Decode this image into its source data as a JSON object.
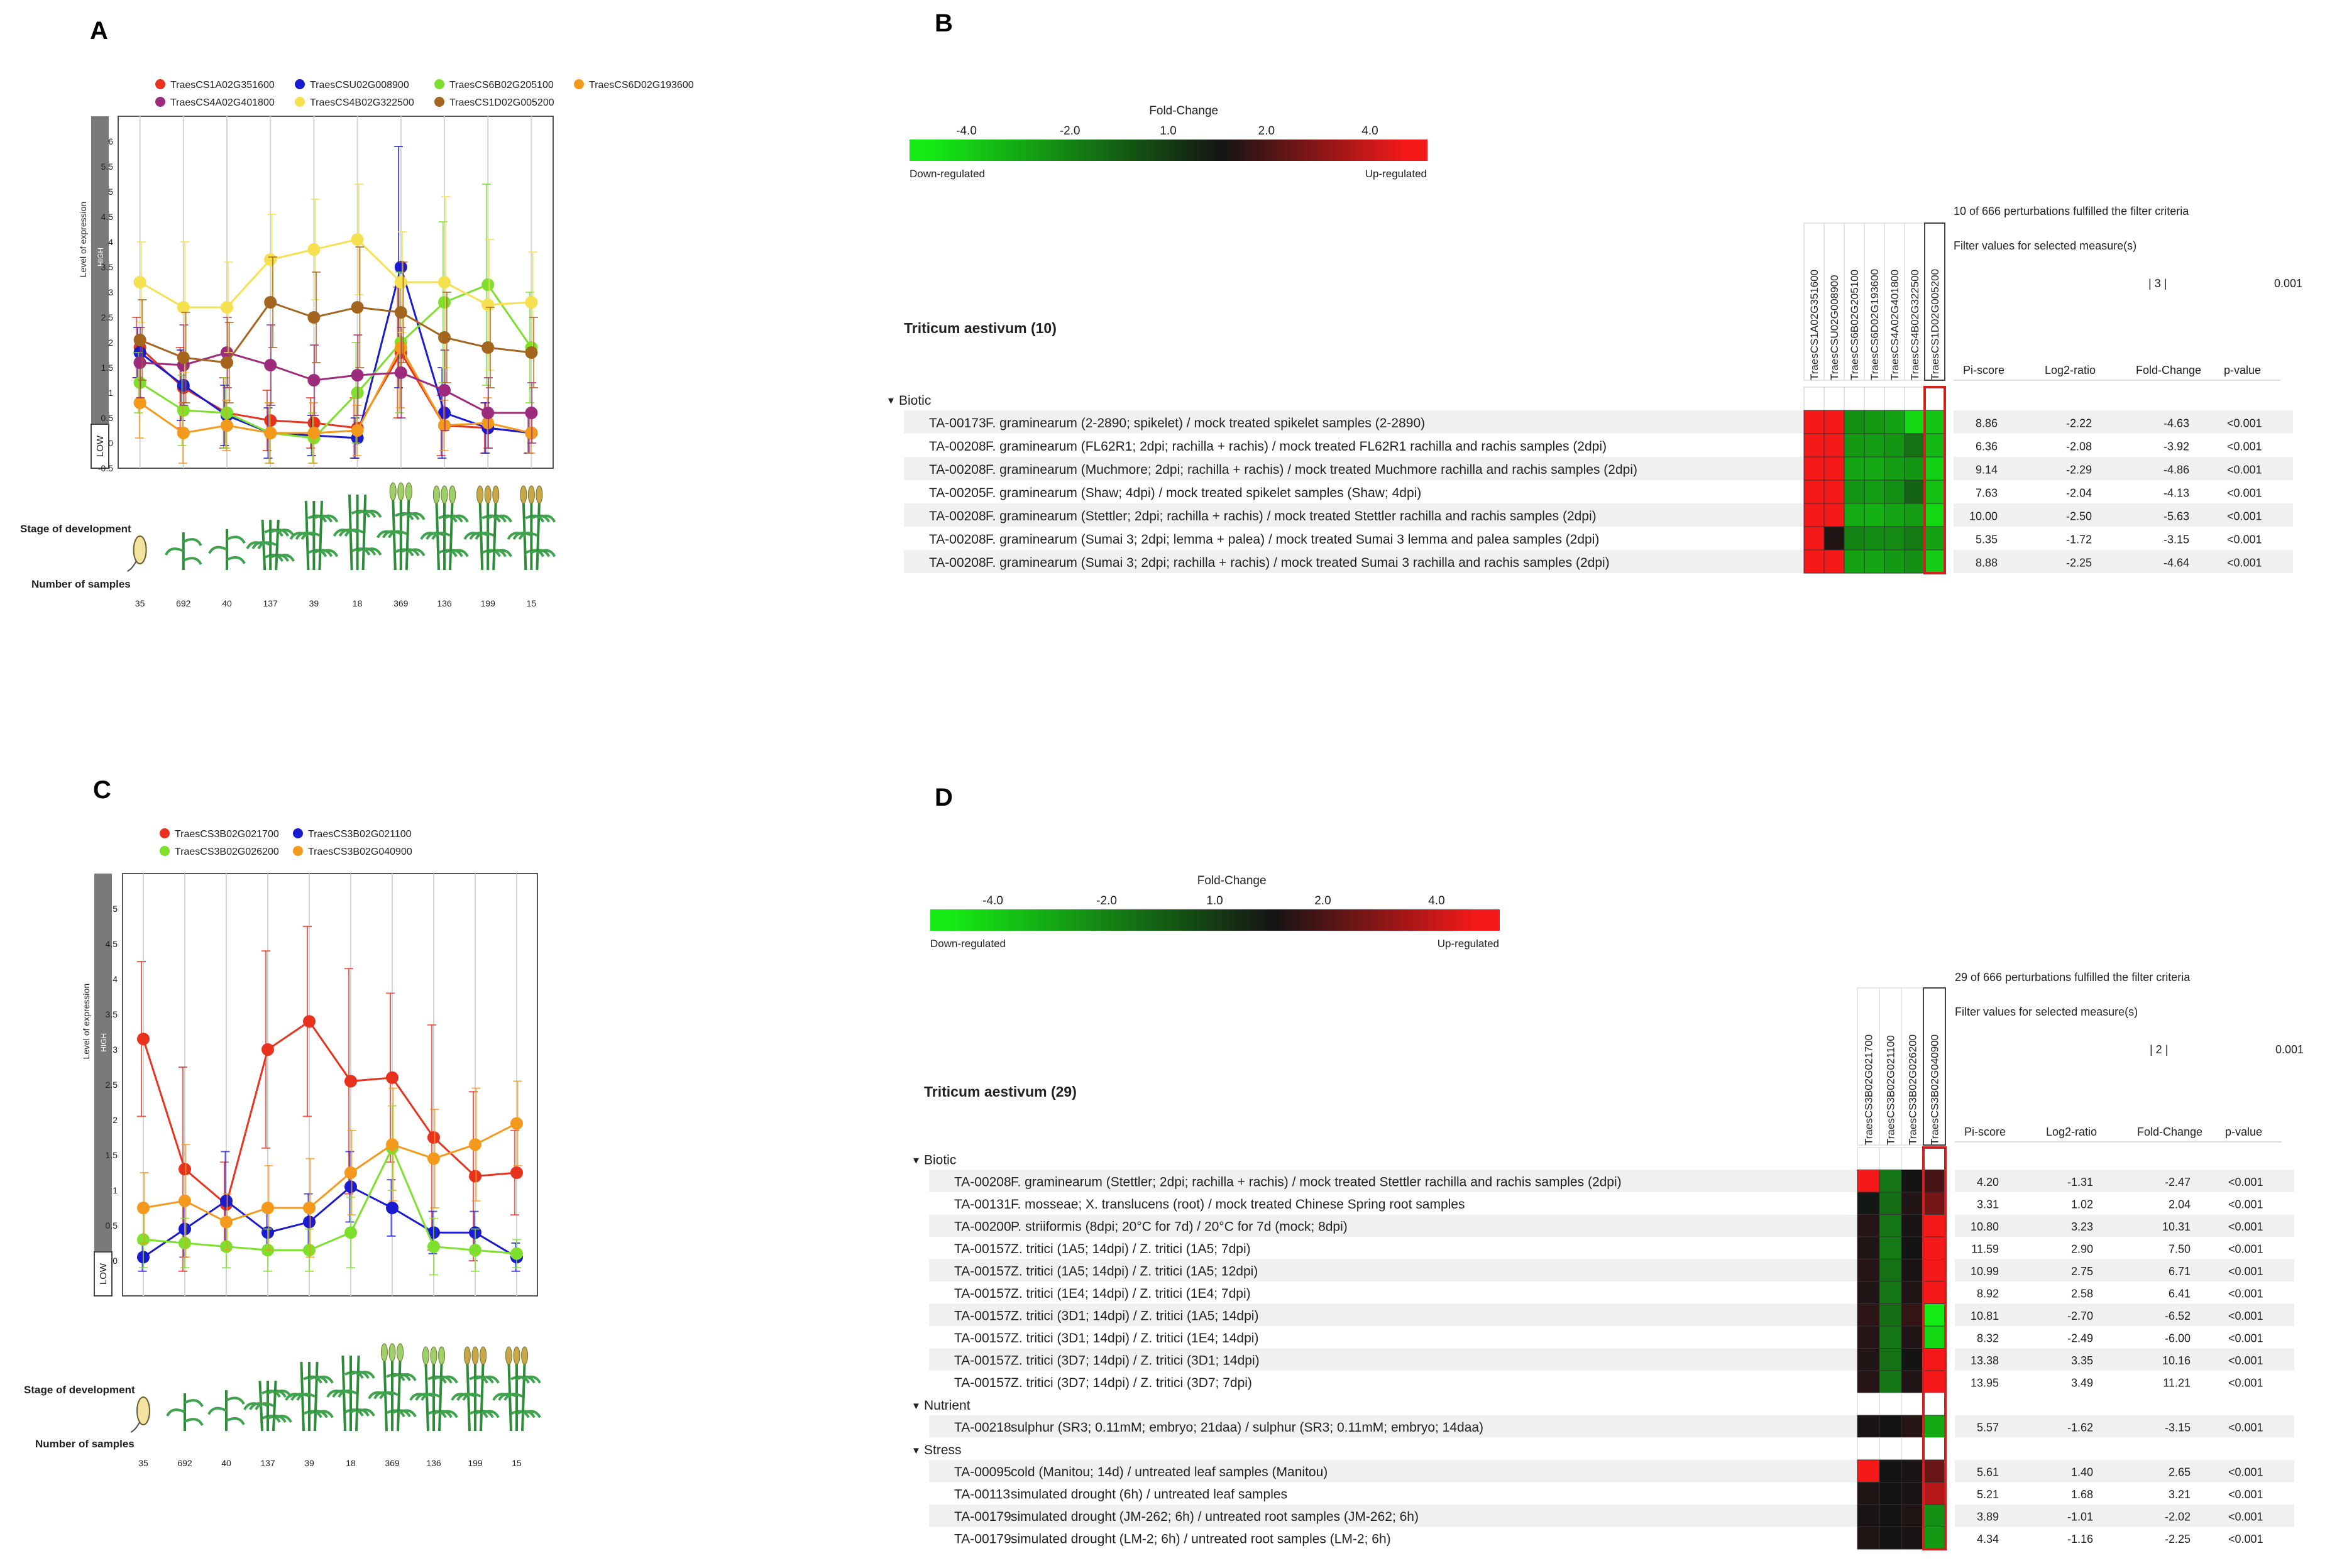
{
  "chart_data": [
    {
      "id": "A",
      "panel_label": "A",
      "type": "line",
      "categories": [
        "35",
        "692",
        "40",
        "137",
        "39",
        "18",
        "369",
        "136",
        "199",
        "15"
      ],
      "xlabel": "Number of samples",
      "row_label": "Stage of development",
      "ylabel": "Level of expression",
      "high_label": "HIGH",
      "low_label": "LOW",
      "ylim": [
        -0.5,
        6.5
      ],
      "yticks": [
        "-0.5",
        "0",
        "0.5",
        "1",
        "1.5",
        "2",
        "2.5",
        "3",
        "3.5",
        "4",
        "4.5",
        "5",
        "5.5",
        "6"
      ],
      "legend_position": "top",
      "series": [
        {
          "name": "TraesCS1A02G351600",
          "color": "#e8321e",
          "values": [
            1.9,
            1.1,
            0.6,
            0.45,
            0.4,
            0.3,
            1.8,
            0.35,
            0.3,
            0.2
          ]
        },
        {
          "name": "TraesCSU02G008900",
          "color": "#1a1ad0",
          "values": [
            1.8,
            1.15,
            0.55,
            0.2,
            0.15,
            0.1,
            3.5,
            0.6,
            0.3,
            0.2
          ]
        },
        {
          "name": "TraesCS6B02G205100",
          "color": "#7ee02c",
          "values": [
            1.2,
            0.65,
            0.6,
            0.2,
            0.1,
            1.0,
            2.0,
            2.8,
            3.15,
            1.9
          ]
        },
        {
          "name": "TraesCS6D02G193600",
          "color": "#f39a1d",
          "values": [
            0.8,
            0.2,
            0.35,
            0.2,
            0.2,
            0.25,
            1.9,
            0.35,
            0.4,
            0.2
          ]
        },
        {
          "name": "TraesCS4A02G401800",
          "color": "#9c2c7b",
          "values": [
            1.6,
            1.55,
            1.8,
            1.55,
            1.25,
            1.35,
            1.4,
            1.05,
            0.6,
            0.6
          ]
        },
        {
          "name": "TraesCS4B02G322500",
          "color": "#f5e050",
          "values": [
            3.2,
            2.7,
            2.7,
            3.65,
            3.85,
            4.05,
            3.2,
            3.2,
            2.75,
            2.8
          ]
        },
        {
          "name": "TraesCS1D02G005200",
          "color": "#a4651f",
          "values": [
            2.05,
            1.7,
            1.6,
            2.8,
            2.5,
            2.7,
            2.6,
            2.1,
            1.9,
            1.8
          ]
        }
      ],
      "errors": [
        [
          0.6,
          0.8,
          0.7,
          0.6,
          0.5,
          0.6,
          1.3,
          0.6,
          0.5,
          0.4
        ],
        [
          0.5,
          0.7,
          0.6,
          0.5,
          0.4,
          0.4,
          2.4,
          0.9,
          0.5,
          0.4
        ],
        [
          0.6,
          0.7,
          0.7,
          0.6,
          0.5,
          1.0,
          1.4,
          1.6,
          2.0,
          1.1
        ],
        [
          0.7,
          0.6,
          0.5,
          0.6,
          0.6,
          0.5,
          1.2,
          0.5,
          0.5,
          0.4
        ],
        [
          0.7,
          0.8,
          0.7,
          0.8,
          0.7,
          0.8,
          0.9,
          0.8,
          0.7,
          0.6
        ],
        [
          0.8,
          1.3,
          0.9,
          0.9,
          1.0,
          1.1,
          1.0,
          1.7,
          1.3,
          1.0
        ],
        [
          0.8,
          0.9,
          0.8,
          0.9,
          0.9,
          1.2,
          1.0,
          0.9,
          0.8,
          0.7
        ]
      ]
    },
    {
      "id": "C",
      "panel_label": "C",
      "type": "line",
      "categories": [
        "35",
        "692",
        "40",
        "137",
        "39",
        "18",
        "369",
        "136",
        "199",
        "15"
      ],
      "xlabel": "Number of samples",
      "row_label": "Stage of development",
      "ylabel": "Level of expression",
      "high_label": "HIGH",
      "low_label": "LOW",
      "ylim": [
        -0.5,
        5.5
      ],
      "yticks": [
        "0",
        "0.5",
        "1",
        "1.5",
        "2",
        "2.5",
        "3",
        "3.5",
        "4",
        "4.5",
        "5"
      ],
      "legend_position": "top",
      "series": [
        {
          "name": "TraesCS3B02G021700",
          "color": "#e8321e",
          "values": [
            3.15,
            1.3,
            0.8,
            3.0,
            3.4,
            2.55,
            2.6,
            1.75,
            1.2,
            1.25
          ]
        },
        {
          "name": "TraesCS3B02G021100",
          "color": "#1a1ad0",
          "values": [
            0.05,
            0.45,
            0.85,
            0.4,
            0.55,
            1.05,
            0.75,
            0.4,
            0.4,
            0.05
          ]
        },
        {
          "name": "TraesCS3B02G026200",
          "color": "#7ee02c",
          "values": [
            0.3,
            0.25,
            0.2,
            0.15,
            0.15,
            0.4,
            1.6,
            0.2,
            0.15,
            0.1
          ]
        },
        {
          "name": "TraesCS3B02G040900",
          "color": "#f39a1d",
          "values": [
            0.75,
            0.85,
            0.55,
            0.75,
            0.75,
            1.25,
            1.65,
            1.45,
            1.65,
            1.95
          ]
        }
      ],
      "errors": [
        [
          1.1,
          1.45,
          0.6,
          1.4,
          1.35,
          1.6,
          1.2,
          1.6,
          1.2,
          0.6
        ],
        [
          0.2,
          0.4,
          0.7,
          0.3,
          0.4,
          0.5,
          0.4,
          0.3,
          0.3,
          0.2
        ],
        [
          0.4,
          0.35,
          0.3,
          0.3,
          0.3,
          0.5,
          0.6,
          0.4,
          0.3,
          0.2
        ],
        [
          0.5,
          0.8,
          0.4,
          0.6,
          0.7,
          0.6,
          0.8,
          0.7,
          0.8,
          0.6
        ]
      ]
    },
    {
      "id": "B",
      "panel_label": "B",
      "type": "heatmap",
      "color_scale": {
        "title": "Fold-Change",
        "ticks": [
          "-4.0",
          "-2.0",
          "1.0",
          "2.0",
          "4.0"
        ],
        "left_label": "Down-regulated",
        "right_label": "Up-regulated"
      },
      "filter_note": "10 of 666 perturbations fulfilled the filter criteria",
      "filter_label": "Filter values for selected measure(s)",
      "filter_values": [
        "| 3 |",
        "0.001"
      ],
      "organism": "Triticum aestivum (10)",
      "columns": [
        "TraesCS1A02G351600",
        "TraesCSU02G008900",
        "TraesCS6B02G205100",
        "TraesCS6D02G193600",
        "TraesCS4A02G401800",
        "TraesCS4B02G322500",
        "TraesCS1D02G005200"
      ],
      "stat_headers": [
        "Pi-score",
        "Log2-ratio",
        "Fold-Change",
        "p-value"
      ],
      "groups": [
        {
          "name": "Biotic",
          "rows": [
            {
              "id": "TA-00173",
              "label": "F. graminearum (2-2890; spikelet) / mock treated spikelet samples (2-2890)",
              "pi": "8.86",
              "log2": "-2.22",
              "fc": "-4.63",
              "p": "<0.001",
              "cells": [
                4.5,
                4.5,
                -2.2,
                -2.4,
                -2.6,
                -4.0,
                -3.5
              ]
            },
            {
              "id": "TA-00208",
              "label": "F. graminearum (FL62R1; 2dpi; rachilla + rachis) / mock treated FL62R1 rachilla and rachis samples (2dpi)",
              "pi": "6.36",
              "log2": "-2.08",
              "fc": "-3.92",
              "p": "<0.001",
              "cells": [
                4.5,
                4.5,
                -2.4,
                -2.5,
                -2.3,
                -1.4,
                -3.2
              ]
            },
            {
              "id": "TA-00208",
              "label": "F. graminearum (Muchmore; 2dpi; rachilla + rachis) / mock treated Muchmore rachilla and rachis samples (2dpi)",
              "pi": "9.14",
              "log2": "-2.29",
              "fc": "-4.86",
              "p": "<0.001",
              "cells": [
                4.5,
                4.5,
                -2.7,
                -2.8,
                -2.5,
                -2.3,
                -3.8
              ]
            },
            {
              "id": "TA-00205",
              "label": "F. graminearum (Shaw; 4dpi) / mock treated spikelet samples (Shaw; 4dpi)",
              "pi": "7.63",
              "log2": "-2.04",
              "fc": "-4.13",
              "p": "<0.001",
              "cells": [
                4.5,
                4.5,
                -2.3,
                -2.5,
                -2.2,
                -1.0,
                -3.4
              ]
            },
            {
              "id": "TA-00208",
              "label": "F. graminearum (Stettler; 2dpi; rachilla + rachis) / mock treated Stettler rachilla and rachis samples (2dpi)",
              "pi": "10.00",
              "log2": "-2.50",
              "fc": "-5.63",
              "p": "<0.001",
              "cells": [
                4.5,
                4.5,
                -2.9,
                -3.0,
                -2.7,
                -2.5,
                -4.0
              ]
            },
            {
              "id": "TA-00208",
              "label": "F. graminearum (Sumai 3; 2dpi; lemma + palea) / mock treated Sumai 3 lemma and palea samples (2dpi)",
              "pi": "5.35",
              "log2": "-1.72",
              "fc": "-3.15",
              "p": "<0.001",
              "cells": [
                4.5,
                1.2,
                -1.9,
                -2.1,
                -2.0,
                -1.6,
                -2.6
              ]
            },
            {
              "id": "TA-00208",
              "label": "F. graminearum (Sumai 3; 2dpi; rachilla + rachis) / mock treated Sumai 3 rachilla and rachis samples (2dpi)",
              "pi": "8.88",
              "log2": "-2.25",
              "fc": "-4.64",
              "p": "<0.001",
              "cells": [
                4.5,
                4.5,
                -2.6,
                -2.7,
                -2.4,
                -2.2,
                -3.7
              ]
            }
          ]
        }
      ]
    },
    {
      "id": "D",
      "panel_label": "D",
      "type": "heatmap",
      "color_scale": {
        "title": "Fold-Change",
        "ticks": [
          "-4.0",
          "-2.0",
          "1.0",
          "2.0",
          "4.0"
        ],
        "left_label": "Down-regulated",
        "right_label": "Up-regulated"
      },
      "filter_note": "29 of 666 perturbations fulfilled the filter criteria",
      "filter_label": "Filter values for selected measure(s)",
      "filter_values": [
        "| 2 |",
        "0.001"
      ],
      "organism": "Triticum aestivum (29)",
      "columns": [
        "TraesCS3B02G021700",
        "TraesCS3B02G021100",
        "TraesCS3B02G026200",
        "TraesCS3B02G040900"
      ],
      "stat_headers": [
        "Pi-score",
        "Log2-ratio",
        "Fold-Change",
        "p-value"
      ],
      "groups": [
        {
          "name": "Biotic",
          "rows": [
            {
              "id": "TA-00208",
              "label": "F. graminearum (Stettler; 2dpi; rachilla + rachis) / mock treated Stettler rachilla and rachis samples (2dpi)",
              "pi": "4.20",
              "log2": "-1.31",
              "fc": "-2.47",
              "p": "<0.001",
              "cells": [
                4.5,
                -1.5,
                1.0,
                1.8
              ]
            },
            {
              "id": "TA-00131",
              "label": "F. mosseae; X. translucens (root) / mock treated Chinese Spring root samples",
              "pi": "3.31",
              "log2": "1.02",
              "fc": "2.04",
              "p": "<0.001",
              "cells": [
                0.9,
                -1.3,
                1.2,
                2.5
              ]
            },
            {
              "id": "TA-00200",
              "label": "P. striiformis (8dpi; 20°C for 7d) / 20°C for 7d (mock; 8dpi)",
              "pi": "10.80",
              "log2": "3.23",
              "fc": "10.31",
              "p": "<0.001",
              "cells": [
                1.3,
                -1.5,
                1.1,
                4.5
              ]
            },
            {
              "id": "TA-00157",
              "label": "Z. tritici (1A5; 14dpi) / Z. tritici (1A5; 7dpi)",
              "pi": "11.59",
              "log2": "2.90",
              "fc": "7.50",
              "p": "<0.001",
              "cells": [
                1.2,
                -1.6,
                1.0,
                4.5
              ]
            },
            {
              "id": "TA-00157",
              "label": "Z. tritici (1A5; 14dpi) / Z. tritici (1A5; 12dpi)",
              "pi": "10.99",
              "log2": "2.75",
              "fc": "6.71",
              "p": "<0.001",
              "cells": [
                1.3,
                -1.4,
                1.1,
                4.5
              ]
            },
            {
              "id": "TA-00157",
              "label": "Z. tritici (1E4; 14dpi) / Z. tritici (1E4; 7dpi)",
              "pi": "8.92",
              "log2": "2.58",
              "fc": "6.41",
              "p": "<0.001",
              "cells": [
                1.2,
                -1.5,
                1.2,
                4.5
              ]
            },
            {
              "id": "TA-00157",
              "label": "Z. tritici (3D1; 14dpi) / Z. tritici (1A5; 14dpi)",
              "pi": "10.81",
              "log2": "-2.70",
              "fc": "-6.52",
              "p": "<0.001",
              "cells": [
                1.4,
                -1.3,
                1.5,
                -4.5
              ]
            },
            {
              "id": "TA-00157",
              "label": "Z. tritici (3D1; 14dpi) / Z. tritici (1E4; 14dpi)",
              "pi": "8.32",
              "log2": "-2.49",
              "fc": "-6.00",
              "p": "<0.001",
              "cells": [
                1.3,
                -1.5,
                1.2,
                -4.0
              ]
            },
            {
              "id": "TA-00157",
              "label": "Z. tritici (3D7; 14dpi) / Z. tritici (3D1; 14dpi)",
              "pi": "13.38",
              "log2": "3.35",
              "fc": "10.16",
              "p": "<0.001",
              "cells": [
                1.2,
                -1.4,
                1.0,
                4.5
              ]
            },
            {
              "id": "TA-00157",
              "label": "Z. tritici (3D7; 14dpi) / Z. tritici (3D7; 7dpi)",
              "pi": "13.95",
              "log2": "3.49",
              "fc": "11.21",
              "p": "<0.001",
              "cells": [
                1.3,
                -1.5,
                1.2,
                4.5
              ]
            }
          ]
        },
        {
          "name": "Nutrient",
          "rows": [
            {
              "id": "TA-00218",
              "label": "sulphur (SR3; 0.11mM; embryo; 21daa) / sulphur (SR3; 0.11mM; embryo; 14daa)",
              "pi": "5.57",
              "log2": "-1.62",
              "fc": "-3.15",
              "p": "<0.001",
              "cells": [
                1.1,
                1.0,
                1.3,
                -2.8
              ]
            }
          ]
        },
        {
          "name": "Stress",
          "rows": [
            {
              "id": "TA-00095",
              "label": "cold (Manitou; 14d) / untreated leaf samples (Manitou)",
              "pi": "5.61",
              "log2": "1.40",
              "fc": "2.65",
              "p": "<0.001",
              "cells": [
                4.5,
                1.0,
                1.1,
                2.3
              ]
            },
            {
              "id": "TA-00113",
              "label": "simulated drought (6h) / untreated leaf samples",
              "pi": "5.21",
              "log2": "1.68",
              "fc": "3.21",
              "p": "<0.001",
              "cells": [
                1.2,
                1.0,
                1.1,
                3.5
              ]
            },
            {
              "id": "TA-00179",
              "label": "simulated drought (JM-262; 6h) / untreated root samples (JM-262; 6h)",
              "pi": "3.89",
              "log2": "-1.01",
              "fc": "-2.02",
              "p": "<0.001",
              "cells": [
                1.1,
                1.0,
                1.2,
                -2.2
              ]
            },
            {
              "id": "TA-00179",
              "label": "simulated drought (LM-2; 6h) / untreated root samples (LM-2; 6h)",
              "pi": "4.34",
              "log2": "-1.16",
              "fc": "-2.25",
              "p": "<0.001",
              "cells": [
                1.2,
                1.0,
                1.1,
                -2.4
              ]
            }
          ]
        }
      ]
    }
  ]
}
